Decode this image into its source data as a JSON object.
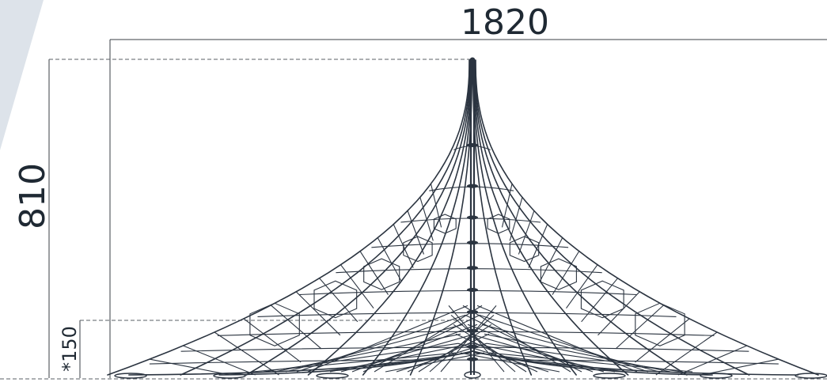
{
  "dimensions": {
    "width_label": "1820",
    "height_label": "810",
    "fall_height_label": "*150"
  },
  "colors": {
    "banner": "#dde3ea",
    "structure": "#2b3440",
    "dimension": "#3a3f45"
  }
}
